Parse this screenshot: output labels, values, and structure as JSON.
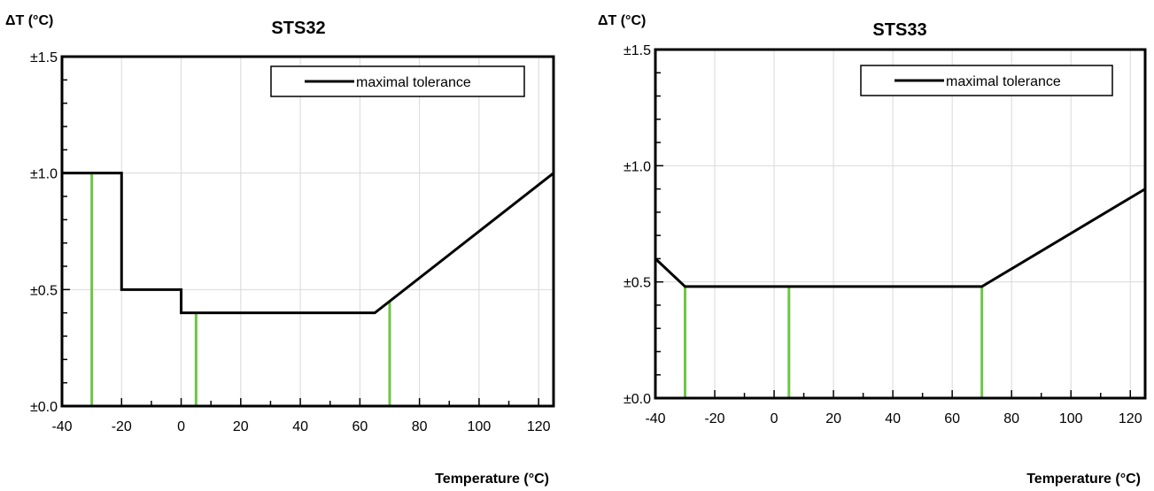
{
  "colors": {
    "tolerance_line": "#000000",
    "marker_line": "#6cc644",
    "grid": "#d9d9d9",
    "frame": "#000000"
  },
  "chart_data": [
    {
      "type": "line",
      "title": "STS32",
      "ylabel": "ΔT (°C)",
      "xlabel": "Temperature (°C)",
      "xlim": [
        -40,
        125
      ],
      "ylim": [
        0,
        1.5
      ],
      "x_ticks": [
        -40,
        -20,
        0,
        20,
        40,
        60,
        80,
        100,
        120
      ],
      "x_tick_labels": [
        "-40",
        "-20",
        "0",
        "20",
        "40",
        "60",
        "80",
        "100",
        "120"
      ],
      "y_ticks": [
        0,
        0.5,
        1.0,
        1.5
      ],
      "y_tick_labels": [
        "±0.0",
        "±0.5",
        "±1.0",
        "±1.5"
      ],
      "grid": "vertical",
      "legend_position": "top-right",
      "series": [
        {
          "name": "maximal tolerance",
          "x": [
            -40,
            -20,
            -20,
            0,
            0,
            65,
            125
          ],
          "y": [
            1.0,
            1.0,
            0.5,
            0.5,
            0.4,
            0.4,
            1.0
          ]
        }
      ],
      "markers": [
        {
          "x": -30,
          "y": 1.0
        },
        {
          "x": 5,
          "y": 0.4
        },
        {
          "x": 70,
          "y": 0.45
        }
      ]
    },
    {
      "type": "line",
      "title": "STS33",
      "ylabel": "ΔT (°C)",
      "xlabel": "Temperature (°C)",
      "xlim": [
        -40,
        125
      ],
      "ylim": [
        0,
        1.5
      ],
      "x_ticks": [
        -40,
        -20,
        0,
        20,
        40,
        60,
        80,
        100,
        120
      ],
      "x_tick_labels": [
        "-40",
        "-20",
        "0",
        "20",
        "40",
        "60",
        "80",
        "100",
        "120"
      ],
      "y_ticks": [
        0,
        0.5,
        1.0,
        1.5
      ],
      "y_tick_labels": [
        "±0.0",
        "±0.5",
        "±1.0",
        "±1.5"
      ],
      "grid": "vertical",
      "legend_position": "top-right",
      "series": [
        {
          "name": "maximal tolerance",
          "x": [
            -40,
            -30,
            70,
            125
          ],
          "y": [
            0.6,
            0.48,
            0.48,
            0.9
          ]
        }
      ],
      "markers": [
        {
          "x": -30,
          "y": 0.48
        },
        {
          "x": 5,
          "y": 0.48
        },
        {
          "x": 70,
          "y": 0.48
        }
      ]
    }
  ]
}
